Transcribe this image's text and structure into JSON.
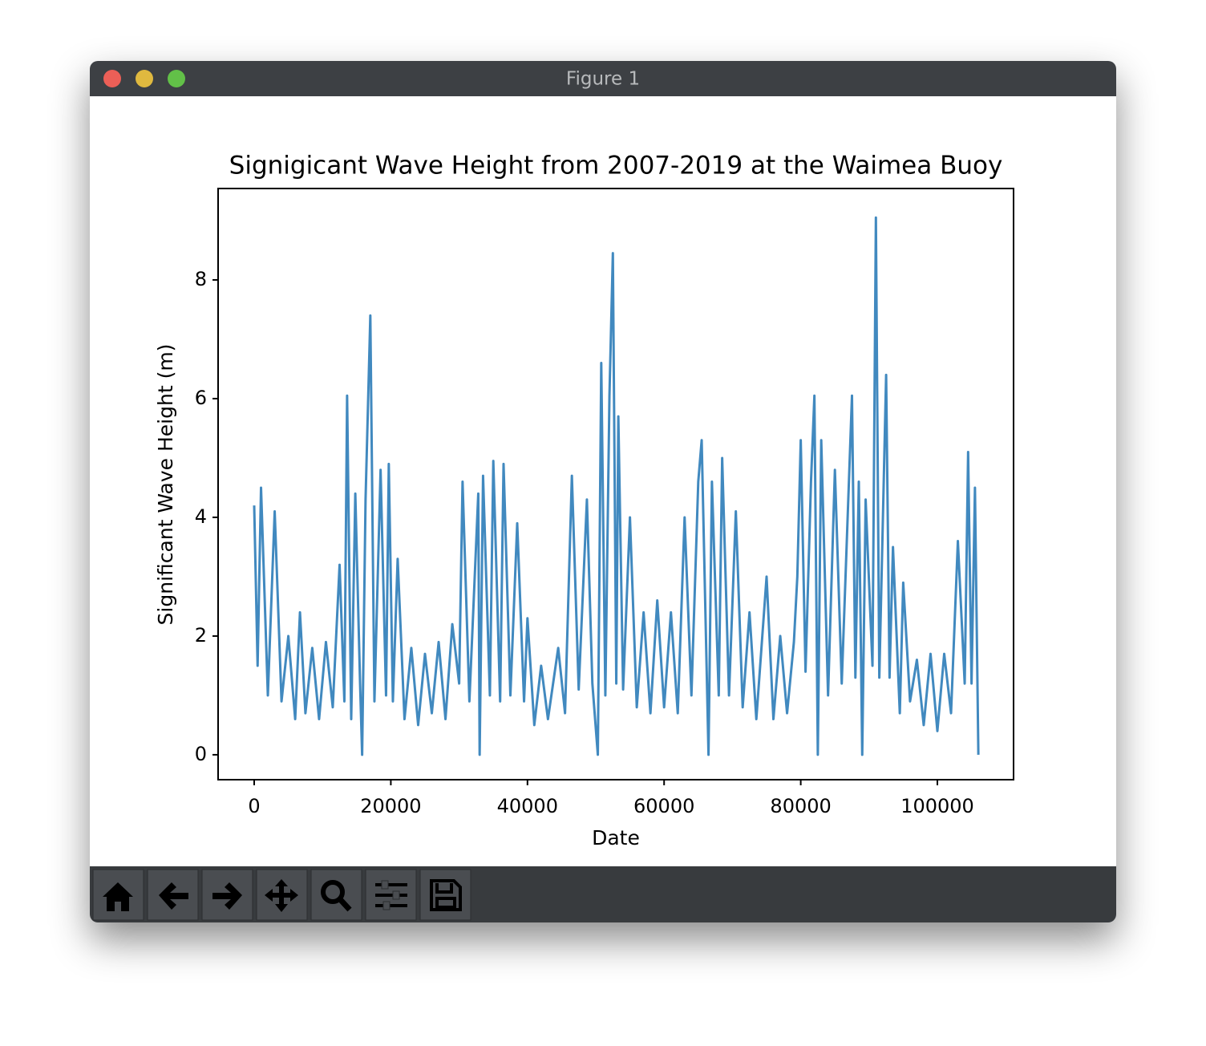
{
  "window": {
    "title": "Figure 1"
  },
  "chart_data": {
    "type": "line",
    "title": "Signigicant Wave Height from 2007-2019 at the Waimea Buoy",
    "xlabel": "Date",
    "ylabel": "Significant Wave Height (m)",
    "xlim": [
      -5282,
      111150
    ],
    "ylim": [
      -0.42,
      9.54
    ],
    "xticks": [
      0,
      20000,
      40000,
      60000,
      80000,
      100000
    ],
    "yticks": [
      0,
      2,
      4,
      6,
      8
    ],
    "series": [
      {
        "color": "#4189bf",
        "x": [
          0,
          500,
          1000,
          2000,
          3000,
          4000,
          5000,
          6000,
          6700,
          7500,
          8500,
          9500,
          10500,
          11500,
          12500,
          13200,
          13600,
          14200,
          14800,
          15500,
          15800,
          16300,
          17000,
          17600,
          18500,
          19300,
          19700,
          20300,
          21000,
          22000,
          23000,
          24000,
          25000,
          26000,
          27000,
          28000,
          29000,
          30000,
          30500,
          31500,
          32800,
          33000,
          33500,
          34500,
          35000,
          36000,
          36500,
          37500,
          38500,
          39500,
          40000,
          41000,
          42000,
          43000,
          44500,
          45500,
          46500,
          47500,
          48700,
          49500,
          50300,
          50800,
          51400,
          52000,
          52500,
          53000,
          53300,
          54000,
          55000,
          56000,
          57000,
          58000,
          59000,
          60000,
          61000,
          62000,
          63000,
          64000,
          65000,
          65500,
          66500,
          67000,
          68000,
          68500,
          69500,
          70500,
          71500,
          72500,
          73500,
          75000,
          76000,
          77000,
          78000,
          79000,
          79500,
          80000,
          80700,
          81500,
          82000,
          82500,
          83000,
          84000,
          85000,
          86000,
          87500,
          88000,
          88500,
          89000,
          89500,
          90500,
          91000,
          91500,
          92500,
          93000,
          93500,
          94500,
          95000,
          96000,
          97000,
          98000,
          99000,
          100000,
          101000,
          102000,
          103000,
          104000,
          104500,
          105000,
          105500,
          106000
        ],
        "values": [
          4.2,
          1.5,
          4.5,
          1.0,
          4.1,
          0.9,
          2.0,
          0.6,
          2.4,
          0.7,
          1.8,
          0.6,
          1.9,
          0.8,
          3.2,
          0.9,
          6.05,
          0.6,
          4.4,
          1.2,
          0,
          4.3,
          7.4,
          0.9,
          4.8,
          1.0,
          4.9,
          0.9,
          3.3,
          0.6,
          1.8,
          0.5,
          1.7,
          0.7,
          1.9,
          0.6,
          2.2,
          1.2,
          4.6,
          0.9,
          4.4,
          0,
          4.7,
          1.0,
          4.95,
          0.9,
          4.9,
          1.0,
          3.9,
          0.9,
          2.3,
          0.5,
          1.5,
          0.6,
          1.8,
          0.7,
          4.7,
          1.1,
          4.3,
          1.2,
          0,
          6.6,
          1.0,
          6.05,
          8.45,
          1.2,
          5.7,
          1.1,
          4.0,
          0.8,
          2.4,
          0.7,
          2.6,
          0.8,
          2.4,
          0.7,
          4.0,
          1.0,
          4.6,
          5.3,
          0,
          4.6,
          1.0,
          5.0,
          1.0,
          4.1,
          0.8,
          2.4,
          0.6,
          3.0,
          0.6,
          2.0,
          0.7,
          1.9,
          3.0,
          5.3,
          1.4,
          4.6,
          6.05,
          0,
          5.3,
          1.0,
          4.8,
          1.2,
          6.05,
          1.3,
          4.6,
          0,
          4.3,
          1.5,
          9.05,
          1.3,
          6.4,
          1.3,
          3.5,
          0.7,
          2.9,
          0.9,
          1.6,
          0.5,
          1.7,
          0.4,
          1.7,
          0.7,
          3.6,
          1.2,
          5.1,
          1.2,
          4.5,
          0
        ]
      }
    ]
  }
}
